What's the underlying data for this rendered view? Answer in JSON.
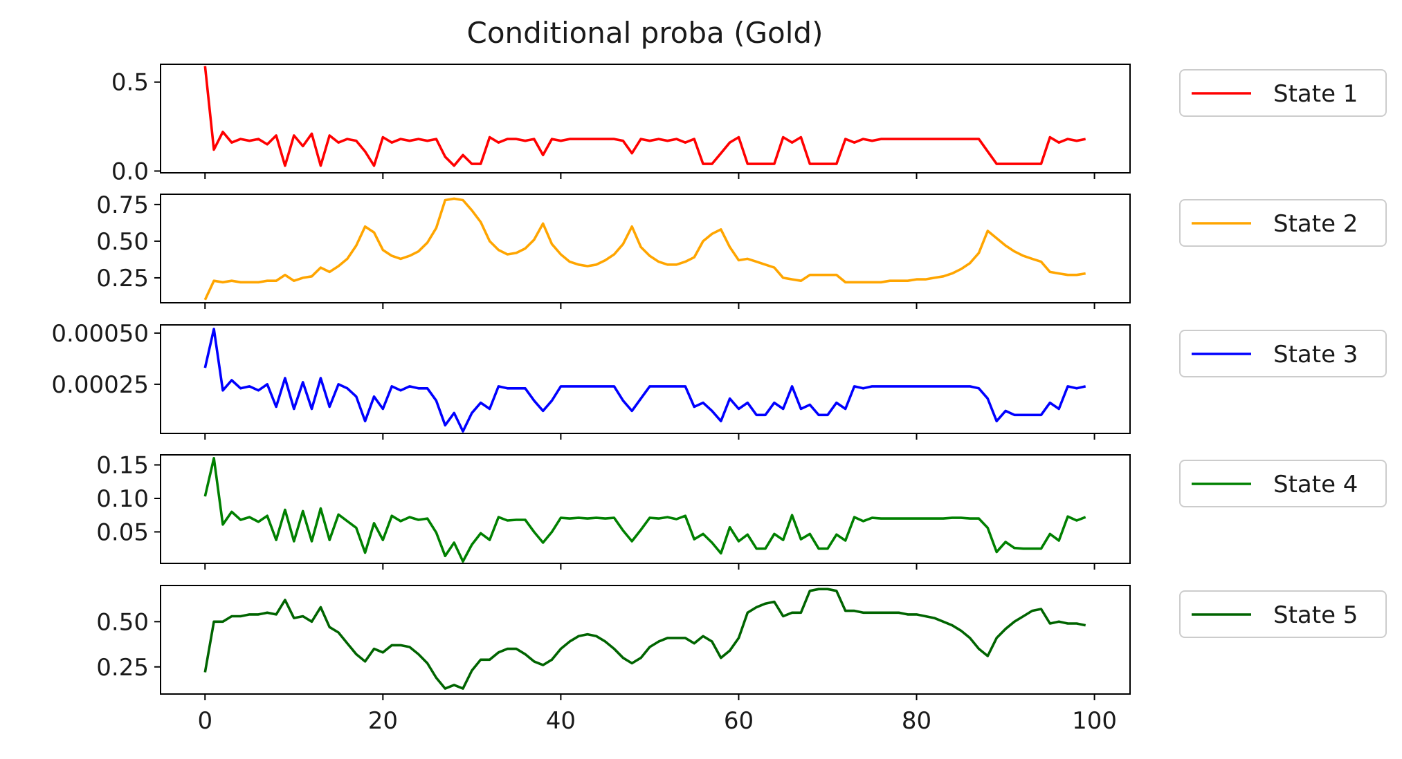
{
  "chart_data": {
    "type": "line",
    "title": "Conditional proba (Gold)",
    "xlabel": "",
    "xlim": [
      -5,
      104
    ],
    "xticks": [
      0,
      20,
      40,
      60,
      80,
      100
    ],
    "x_start": 0,
    "legend_placement": "outside-right",
    "grid": false,
    "panels": [
      {
        "series_name": "State 1",
        "color": "#ff0000",
        "ylabel": "",
        "ylim": [
          -0.01,
          0.6
        ],
        "yticks": [
          0.0,
          0.5
        ],
        "ytick_labels": [
          "0.0",
          "0.5"
        ],
        "values": [
          0.59,
          0.12,
          0.22,
          0.16,
          0.18,
          0.17,
          0.18,
          0.15,
          0.2,
          0.03,
          0.2,
          0.14,
          0.21,
          0.03,
          0.2,
          0.16,
          0.18,
          0.17,
          0.11,
          0.03,
          0.19,
          0.16,
          0.18,
          0.17,
          0.18,
          0.17,
          0.18,
          0.08,
          0.03,
          0.09,
          0.04,
          0.04,
          0.19,
          0.16,
          0.18,
          0.18,
          0.17,
          0.18,
          0.09,
          0.18,
          0.17,
          0.18,
          0.18,
          0.18,
          0.18,
          0.18,
          0.18,
          0.17,
          0.1,
          0.18,
          0.17,
          0.18,
          0.17,
          0.18,
          0.16,
          0.18,
          0.04,
          0.04,
          0.1,
          0.16,
          0.19,
          0.04,
          0.04,
          0.04,
          0.04,
          0.19,
          0.16,
          0.19,
          0.04,
          0.04,
          0.04,
          0.04,
          0.18,
          0.16,
          0.18,
          0.17,
          0.18,
          0.18,
          0.18,
          0.18,
          0.18,
          0.18,
          0.18,
          0.18,
          0.18,
          0.18,
          0.18,
          0.18,
          0.11,
          0.04,
          0.04,
          0.04,
          0.04,
          0.04,
          0.04,
          0.19,
          0.16,
          0.18,
          0.17,
          0.18
        ]
      },
      {
        "series_name": "State 2",
        "color": "#ffa500",
        "ylabel": "",
        "ylim": [
          0.08,
          0.82
        ],
        "yticks": [
          0.25,
          0.5,
          0.75
        ],
        "ytick_labels": [
          "0.25",
          "0.50",
          "0.75"
        ],
        "values": [
          0.1,
          0.23,
          0.22,
          0.23,
          0.22,
          0.22,
          0.22,
          0.23,
          0.23,
          0.27,
          0.23,
          0.25,
          0.26,
          0.32,
          0.29,
          0.33,
          0.38,
          0.47,
          0.6,
          0.56,
          0.44,
          0.4,
          0.38,
          0.4,
          0.43,
          0.49,
          0.59,
          0.78,
          0.79,
          0.78,
          0.71,
          0.63,
          0.5,
          0.44,
          0.41,
          0.42,
          0.45,
          0.51,
          0.62,
          0.48,
          0.41,
          0.36,
          0.34,
          0.33,
          0.34,
          0.37,
          0.41,
          0.48,
          0.6,
          0.46,
          0.4,
          0.36,
          0.34,
          0.34,
          0.36,
          0.39,
          0.5,
          0.55,
          0.58,
          0.46,
          0.37,
          0.38,
          0.36,
          0.34,
          0.32,
          0.25,
          0.24,
          0.23,
          0.27,
          0.27,
          0.27,
          0.27,
          0.22,
          0.22,
          0.22,
          0.22,
          0.22,
          0.23,
          0.23,
          0.23,
          0.24,
          0.24,
          0.25,
          0.26,
          0.28,
          0.31,
          0.35,
          0.42,
          0.57,
          0.52,
          0.47,
          0.43,
          0.4,
          0.38,
          0.36,
          0.29,
          0.28,
          0.27,
          0.27,
          0.28
        ]
      },
      {
        "series_name": "State 3",
        "color": "#0000ff",
        "ylabel": "",
        "ylim": [
          1e-05,
          0.00054
        ],
        "yticks": [
          0.00025,
          0.0005
        ],
        "ytick_labels": [
          "0.00025",
          "0.00050"
        ],
        "values": [
          0.00033,
          0.00052,
          0.00022,
          0.00027,
          0.00023,
          0.00024,
          0.00022,
          0.00025,
          0.00014,
          0.00028,
          0.00013,
          0.00026,
          0.00013,
          0.00028,
          0.00014,
          0.00025,
          0.00023,
          0.00019,
          7e-05,
          0.00019,
          0.00013,
          0.00024,
          0.00022,
          0.00024,
          0.00023,
          0.00023,
          0.00017,
          5e-05,
          0.00011,
          2e-05,
          0.00011,
          0.00016,
          0.00013,
          0.00024,
          0.00023,
          0.00023,
          0.00023,
          0.00017,
          0.00012,
          0.00017,
          0.00024,
          0.00024,
          0.00024,
          0.00024,
          0.00024,
          0.00024,
          0.00024,
          0.00017,
          0.00012,
          0.00018,
          0.00024,
          0.00024,
          0.00024,
          0.00024,
          0.00024,
          0.00014,
          0.00016,
          0.00012,
          7e-05,
          0.00018,
          0.00013,
          0.00016,
          0.0001,
          0.0001,
          0.00016,
          0.00013,
          0.00024,
          0.00013,
          0.00015,
          0.0001,
          0.0001,
          0.00016,
          0.00013,
          0.00024,
          0.00023,
          0.00024,
          0.00024,
          0.00024,
          0.00024,
          0.00024,
          0.00024,
          0.00024,
          0.00024,
          0.00024,
          0.00024,
          0.00024,
          0.00024,
          0.00023,
          0.00018,
          7e-05,
          0.00012,
          0.0001,
          0.0001,
          0.0001,
          0.0001,
          0.00016,
          0.00013,
          0.00024,
          0.00023,
          0.00024
        ]
      },
      {
        "series_name": "State 4",
        "color": "#008000",
        "ylabel": "",
        "ylim": [
          0.003,
          0.165
        ],
        "yticks": [
          0.05,
          0.1,
          0.15
        ],
        "ytick_labels": [
          "0.05",
          "0.10",
          "0.15"
        ],
        "values": [
          0.103,
          0.16,
          0.061,
          0.08,
          0.068,
          0.072,
          0.065,
          0.074,
          0.038,
          0.083,
          0.036,
          0.081,
          0.036,
          0.085,
          0.038,
          0.076,
          0.066,
          0.056,
          0.019,
          0.063,
          0.038,
          0.074,
          0.066,
          0.072,
          0.068,
          0.07,
          0.049,
          0.014,
          0.034,
          0.006,
          0.031,
          0.048,
          0.038,
          0.072,
          0.067,
          0.068,
          0.068,
          0.05,
          0.034,
          0.05,
          0.071,
          0.07,
          0.071,
          0.07,
          0.071,
          0.07,
          0.071,
          0.052,
          0.036,
          0.053,
          0.071,
          0.07,
          0.072,
          0.069,
          0.074,
          0.039,
          0.047,
          0.034,
          0.018,
          0.057,
          0.036,
          0.046,
          0.025,
          0.025,
          0.047,
          0.038,
          0.075,
          0.039,
          0.047,
          0.025,
          0.025,
          0.046,
          0.037,
          0.072,
          0.066,
          0.071,
          0.07,
          0.07,
          0.07,
          0.07,
          0.07,
          0.07,
          0.07,
          0.07,
          0.071,
          0.071,
          0.07,
          0.07,
          0.056,
          0.02,
          0.035,
          0.026,
          0.025,
          0.025,
          0.025,
          0.047,
          0.037,
          0.073,
          0.067,
          0.072
        ]
      },
      {
        "series_name": "State 5",
        "color": "#006400",
        "ylabel": "",
        "ylim": [
          0.1,
          0.7
        ],
        "yticks": [
          0.25,
          0.5
        ],
        "ytick_labels": [
          "0.25",
          "0.50"
        ],
        "values": [
          0.22,
          0.5,
          0.5,
          0.53,
          0.53,
          0.54,
          0.54,
          0.55,
          0.54,
          0.62,
          0.52,
          0.53,
          0.5,
          0.58,
          0.47,
          0.44,
          0.38,
          0.32,
          0.28,
          0.35,
          0.33,
          0.37,
          0.37,
          0.36,
          0.32,
          0.27,
          0.19,
          0.13,
          0.15,
          0.13,
          0.23,
          0.29,
          0.29,
          0.33,
          0.35,
          0.35,
          0.32,
          0.28,
          0.26,
          0.29,
          0.35,
          0.39,
          0.42,
          0.43,
          0.42,
          0.39,
          0.35,
          0.3,
          0.27,
          0.3,
          0.36,
          0.39,
          0.41,
          0.41,
          0.41,
          0.38,
          0.42,
          0.39,
          0.3,
          0.34,
          0.41,
          0.55,
          0.58,
          0.6,
          0.61,
          0.53,
          0.55,
          0.55,
          0.67,
          0.68,
          0.68,
          0.67,
          0.56,
          0.56,
          0.55,
          0.55,
          0.55,
          0.55,
          0.55,
          0.54,
          0.54,
          0.53,
          0.52,
          0.5,
          0.48,
          0.45,
          0.41,
          0.35,
          0.31,
          0.41,
          0.46,
          0.5,
          0.53,
          0.56,
          0.57,
          0.49,
          0.5,
          0.49,
          0.49,
          0.48
        ]
      }
    ]
  }
}
